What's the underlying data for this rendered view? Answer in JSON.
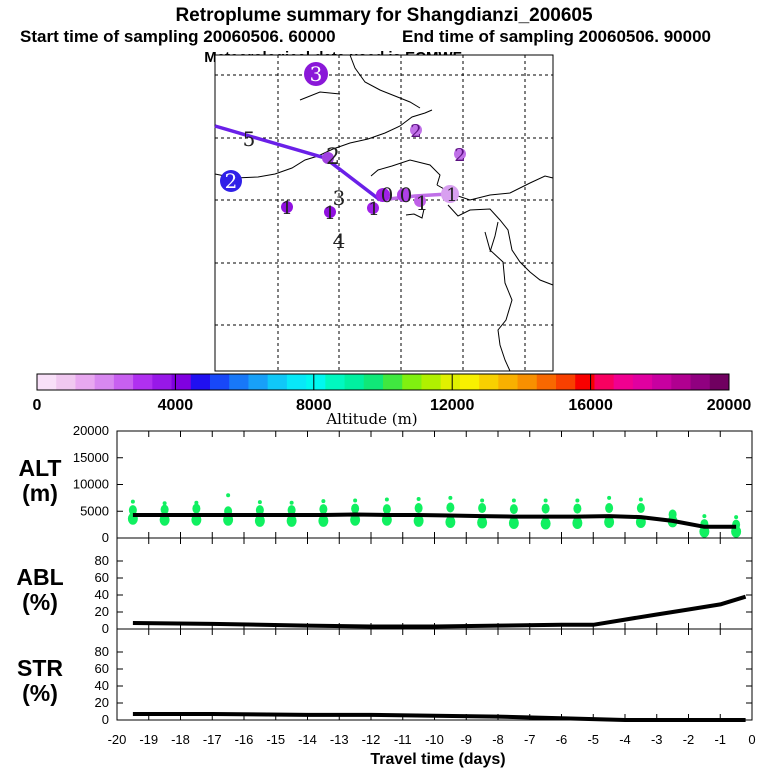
{
  "header": {
    "title": "Retroplume summary for Shangdianzi_200605",
    "start_label": "Start time of sampling 20060506. 60000",
    "end_label": "End time of sampling 20060506. 90000",
    "met_label": "Meteorological data used is ECMWF"
  },
  "colorbar": {
    "label": "Altitude (m)",
    "tick_labels": [
      "0",
      "4000",
      "8000",
      "12000",
      "16000",
      "20000"
    ],
    "min": 0,
    "max": 20000,
    "colors": [
      "#f8e0f8",
      "#f0c8f0",
      "#e8a8f0",
      "#d888f0",
      "#c860f0",
      "#b030f0",
      "#9818e8",
      "#8000e0",
      "#2010f0",
      "#1848f8",
      "#1878f8",
      "#18a0f8",
      "#10c8f8",
      "#08e8f8",
      "#00f8f0",
      "#00f8c0",
      "#00f0a0",
      "#10e878",
      "#40e840",
      "#80f010",
      "#b0f000",
      "#e0f000",
      "#f8f000",
      "#f8d000",
      "#f8b000",
      "#f89000",
      "#f86800",
      "#f84000",
      "#f80000",
      "#f80060",
      "#f00090",
      "#e000a0",
      "#c800a0",
      "#b00090",
      "#900080",
      "#700060"
    ]
  },
  "map": {
    "labels": [
      {
        "text": "3",
        "color": "#8a18d8",
        "role": "cluster"
      },
      {
        "text": "5",
        "color": "#222222",
        "role": "plain"
      },
      {
        "text": "2",
        "color": "#a040e0",
        "role": "cluster"
      },
      {
        "text": "2",
        "color": "#c070e8",
        "role": "cluster"
      },
      {
        "text": "2",
        "color": "#a020e8",
        "role": "cluster"
      },
      {
        "text": "2",
        "color": "#3020e8",
        "role": "cluster"
      },
      {
        "text": "1",
        "color": "#9010e0",
        "role": "cluster"
      },
      {
        "text": "1",
        "color": "#9010e0",
        "role": "cluster"
      },
      {
        "text": "3",
        "color": "#222222",
        "role": "plain"
      },
      {
        "text": "4",
        "color": "#222222",
        "role": "plain"
      },
      {
        "text": "1",
        "color": "#a020e8",
        "role": "cluster"
      },
      {
        "text": "0",
        "color": "#a020e8",
        "role": "cluster"
      },
      {
        "text": "0",
        "color": "#b040e8",
        "role": "cluster"
      },
      {
        "text": "1",
        "color": "#c060e8",
        "role": "cluster"
      },
      {
        "text": "1",
        "color": "#d8a0f0",
        "role": "cluster"
      }
    ]
  },
  "chart_data": [
    {
      "type": "line",
      "title": "ALT",
      "ylabel": "ALT (m)",
      "label_lines": [
        "ALT",
        "(m)"
      ],
      "ylim": [
        0,
        20000
      ],
      "yticks": [
        0,
        5000,
        10000,
        15000,
        20000
      ],
      "xlim": [
        -20,
        0
      ],
      "series": [
        {
          "name": "mean altitude",
          "color": "#000000",
          "x": [
            -19.5,
            -18.5,
            -17.5,
            -16.5,
            -15.5,
            -14.5,
            -13.5,
            -12.5,
            -11.5,
            -10.5,
            -9.5,
            -8.5,
            -7.5,
            -6.5,
            -5.5,
            -4.5,
            -3.5,
            -2.5,
            -1.5,
            -0.5
          ],
          "y": [
            4300,
            4300,
            4300,
            4300,
            4300,
            4300,
            4300,
            4400,
            4300,
            4300,
            4200,
            4100,
            4000,
            4000,
            4000,
            4100,
            3900,
            3200,
            2100,
            2100
          ]
        },
        {
          "name": "particle clusters",
          "color": "#10f060",
          "type": "scatter",
          "x": [
            -19.5,
            -18.5,
            -17.5,
            -16.5,
            -15.5,
            -14.5,
            -13.5,
            -12.5,
            -11.5,
            -10.5,
            -9.5,
            -8.5,
            -7.5,
            -6.5,
            -5.5,
            -4.5,
            -3.5,
            -2.5,
            -1.5,
            -0.5
          ],
          "y_top": [
            6800,
            6500,
            6600,
            8000,
            6700,
            6600,
            6900,
            7000,
            7200,
            7300,
            7500,
            7000,
            7000,
            7000,
            7000,
            7500,
            7200,
            4900,
            4100,
            3900
          ],
          "y_mid": [
            5200,
            5300,
            5500,
            5000,
            5200,
            5200,
            5400,
            5500,
            5400,
            5600,
            5700,
            5600,
            5400,
            5500,
            5500,
            5600,
            5600,
            4400,
            2600,
            2500
          ],
          "y_low": [
            3600,
            3400,
            3400,
            3400,
            3200,
            3200,
            3200,
            3400,
            3400,
            3200,
            3000,
            2900,
            2800,
            2700,
            2800,
            3000,
            3000,
            3100,
            1200,
            1200
          ]
        }
      ]
    },
    {
      "type": "line",
      "title": "ABL",
      "ylabel": "ABL (%)",
      "label_lines": [
        "ABL",
        "(%)"
      ],
      "ylim": [
        0,
        100
      ],
      "yticks": [
        0,
        20,
        40,
        60,
        80
      ],
      "xlim": [
        -20,
        0
      ],
      "series": [
        {
          "name": "ABL fraction",
          "color": "#000000",
          "x": [
            -19.5,
            -17,
            -14,
            -12,
            -10,
            -8,
            -6,
            -5,
            -4,
            -3,
            -2,
            -1,
            -0.2
          ],
          "y": [
            7,
            6,
            4,
            3,
            3,
            4,
            5,
            5,
            11,
            17,
            23,
            29,
            38
          ]
        }
      ]
    },
    {
      "type": "line",
      "title": "STR",
      "ylabel": "STR (%)",
      "label_lines": [
        "STR",
        "(%)"
      ],
      "ylim": [
        0,
        100
      ],
      "yticks": [
        0,
        20,
        40,
        60,
        80
      ],
      "xlim": [
        -20,
        0
      ],
      "xlabel": "Travel time (days)",
      "xtick_labels": [
        "-20",
        "-19",
        "-18",
        "-17",
        "-16",
        "-15",
        "-14",
        "-13",
        "-12",
        "-11",
        "-10",
        "-9",
        "-8",
        "-7",
        "-6",
        "-5",
        "-4",
        "-3",
        "-2",
        "-1",
        "0"
      ],
      "series": [
        {
          "name": "stratospheric fraction",
          "color": "#000000",
          "x": [
            -19.5,
            -17,
            -14,
            -12,
            -10,
            -8,
            -6,
            -5,
            -4,
            -3,
            -2,
            -1,
            -0.2
          ],
          "y": [
            7,
            7,
            6,
            6,
            5,
            4,
            2,
            1,
            0,
            0,
            0,
            0,
            0
          ]
        }
      ]
    }
  ]
}
